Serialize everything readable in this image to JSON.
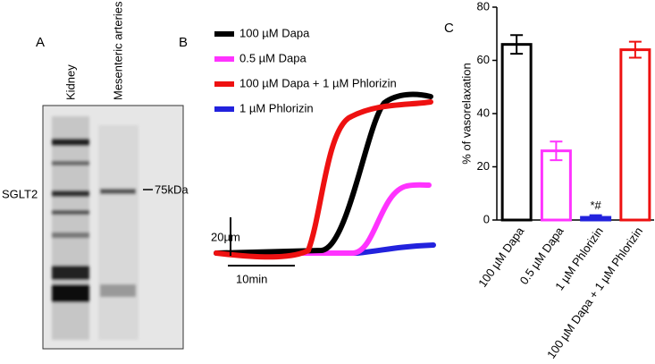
{
  "panel_a": {
    "label": "A",
    "lanes": [
      "Kidney",
      "Mesenteric arteries"
    ],
    "band_label": "SGLT2",
    "marker": "75kDa"
  },
  "panel_b": {
    "label": "B",
    "legend": [
      {
        "name": "100 µM Dapa",
        "color": "#000000"
      },
      {
        "name": "0.5 µM Dapa",
        "color": "#ff33ff"
      },
      {
        "name": "100 µM Dapa + 1 µM Phlorizin",
        "color": "#ee1111"
      },
      {
        "name": "1 µM Phlorizin",
        "color": "#2222dd"
      }
    ],
    "scale_y": "20µm",
    "scale_x": "10min"
  },
  "chart_data": {
    "type": "bar",
    "label": "C",
    "ylabel": "% of vasorelaxation",
    "categories": [
      "100 µM Dapa",
      "0.5 µM Dapa",
      "1 µM Phlorizin",
      "100 µM Dapa + 1 µM Phlorizin"
    ],
    "values": [
      66,
      26,
      1,
      64
    ],
    "errors": [
      3.5,
      3.5,
      0.8,
      3
    ],
    "colors": [
      "#000000",
      "#ff33ff",
      "#2222dd",
      "#ee1111"
    ],
    "ylim": [
      0,
      80
    ],
    "yticks": [
      0,
      20,
      40,
      60,
      80
    ],
    "annotation": "*#"
  }
}
